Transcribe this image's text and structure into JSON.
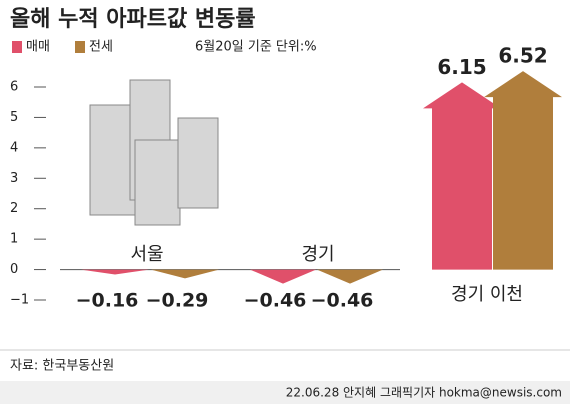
{
  "chart_data": {
    "type": "bar",
    "title": "올해 누적 아파트값 변동률",
    "note": "6월20일 기준 단위:%",
    "categories": [
      "서울",
      "경기",
      "경기 이천"
    ],
    "series": [
      {
        "name": "매매",
        "color": "#e0506a",
        "values": [
          -0.16,
          -0.46,
          6.15
        ],
        "value_labels": [
          "−0.16",
          "−0.46",
          "6.15"
        ]
      },
      {
        "name": "전세",
        "color": "#b07e3c",
        "values": [
          -0.29,
          -0.46,
          6.52
        ],
        "value_labels": [
          "−0.29",
          "−0.46",
          "6.52"
        ]
      }
    ],
    "ylim": [
      -1,
      6
    ],
    "yticks": [
      {
        "value": -1,
        "label": "−1"
      },
      0,
      1,
      2,
      3,
      4,
      5,
      6
    ],
    "source": "자료: 한국부동산원",
    "credit": "22.06.28 안지혜 그래픽기자 hokma@newsis.com"
  }
}
